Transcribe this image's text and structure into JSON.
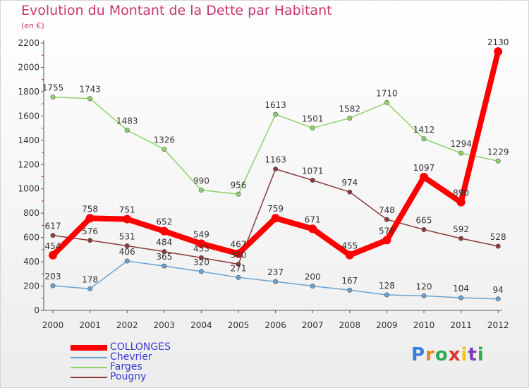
{
  "title": "Evolution du Montant de la Dette par Habitant",
  "subtitle": "(en €)",
  "logo": {
    "text": "Proxiti",
    "letters": [
      "P",
      "r",
      "o",
      "x",
      "i",
      "t",
      "i"
    ],
    "colors": [
      "#3a7de0",
      "#e08a1e",
      "#2fa84f",
      "#e0342f",
      "#f2c500",
      "#7a3fb5",
      "#2fa84f"
    ]
  },
  "chart_data": {
    "type": "line",
    "x": [
      "2000",
      "2001",
      "2002",
      "2003",
      "2004",
      "2005",
      "2006",
      "2007",
      "2008",
      "2009",
      "2010",
      "2011",
      "2012"
    ],
    "ylim": [
      0,
      2200
    ],
    "yticks": [
      0,
      200,
      400,
      600,
      800,
      1000,
      1200,
      1400,
      1600,
      1800,
      2000,
      2200
    ],
    "grid": "none",
    "legend_position": "bottom-left",
    "series": [
      {
        "name": "COLLONGES",
        "color": "#ff0000",
        "emphasis": true,
        "values": [
          454,
          758,
          751,
          652,
          549,
          467,
          759,
          671,
          455,
          578,
          1097,
          890,
          2130
        ],
        "labels": [
          "454",
          "758",
          "751",
          "652",
          "549",
          "467",
          "759",
          "671",
          "455",
          "578",
          "1097",
          "890",
          "2130"
        ]
      },
      {
        "name": "Chevrier",
        "color": "#6aa2cf",
        "values": [
          203,
          178,
          406,
          365,
          320,
          271,
          237,
          200,
          167,
          128,
          120,
          104,
          94
        ],
        "labels": [
          "203",
          "178",
          "406",
          "365",
          "320",
          "271",
          "237",
          "200",
          "167",
          "128",
          "120",
          "104",
          "94"
        ]
      },
      {
        "name": "Farges",
        "color": "#8dd36a",
        "values": [
          1755,
          1743,
          1483,
          1326,
          990,
          956,
          1613,
          1501,
          1582,
          1710,
          1412,
          1294,
          1229
        ],
        "labels": [
          "1755",
          "1743",
          "1483",
          "1326",
          "990",
          "956",
          "1613",
          "1501",
          "1582",
          "1710",
          "1412",
          "1294",
          "1229"
        ]
      },
      {
        "name": "Pougny",
        "color": "#8b3a3a",
        "values": [
          617,
          576,
          531,
          484,
          433,
          380,
          1163,
          1071,
          974,
          748,
          665,
          592,
          528
        ],
        "labels": [
          "617",
          "576",
          "531",
          "484",
          "433",
          "380",
          "1163",
          "1071",
          "974",
          "748",
          "665",
          "592",
          "528"
        ]
      }
    ]
  }
}
